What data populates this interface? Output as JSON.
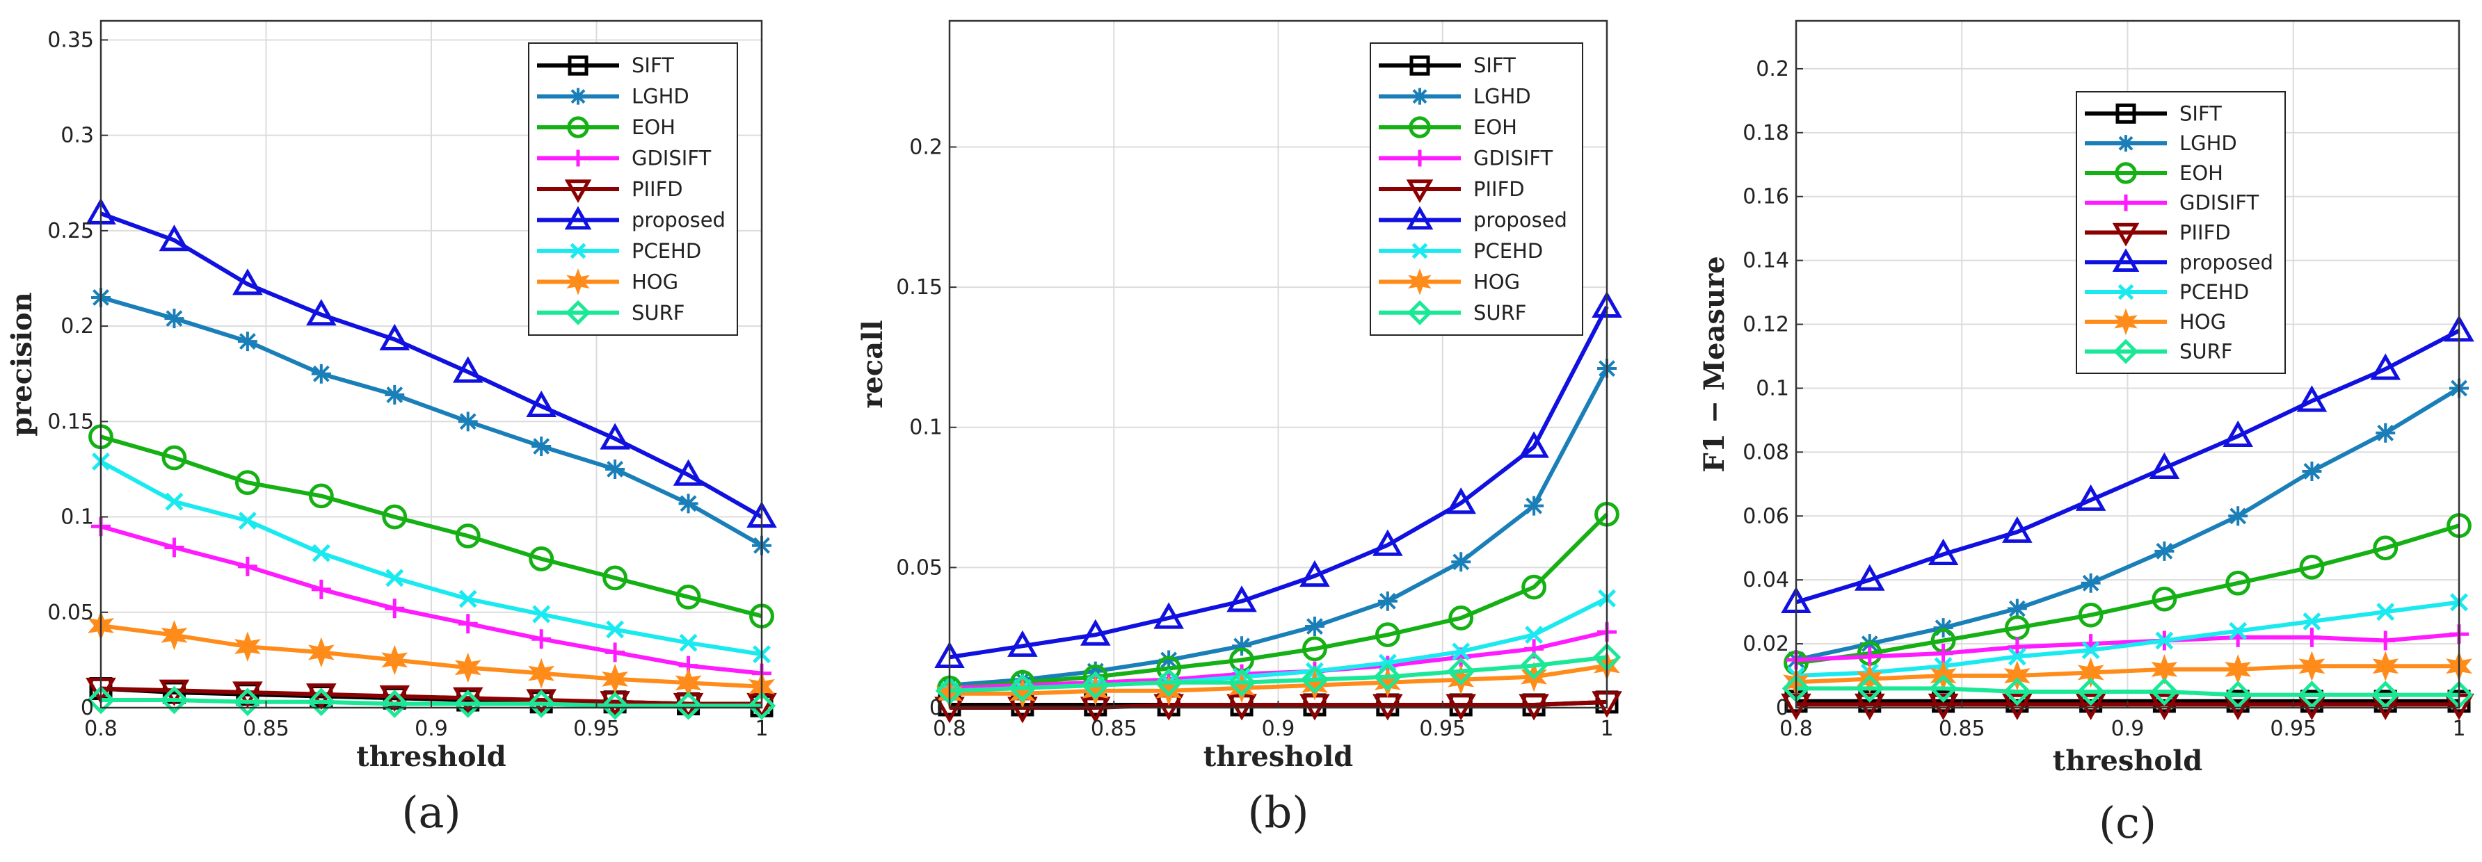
{
  "chart_data": [
    {
      "type": "line",
      "caption": "(a)",
      "title": "",
      "xlabel": "threshold",
      "ylabel": "precision",
      "xlim": [
        0.8,
        1
      ],
      "ylim": [
        0,
        0.36
      ],
      "xticks": [
        0.8,
        0.85,
        0.9,
        0.95,
        1
      ],
      "xtick_labels": [
        "0.8",
        "0.85",
        "0.9",
        "0.95",
        "1"
      ],
      "yticks": [
        0,
        0.05,
        0.1,
        0.15,
        0.2,
        0.25,
        0.3,
        0.35
      ],
      "ytick_labels": [
        "0",
        "0.05",
        "0.1",
        "0.15",
        "0.2",
        "0.25",
        "0.3",
        "0.35"
      ],
      "grid": true,
      "legend_position": "top-right",
      "x": [
        0.8,
        0.8222,
        0.8444,
        0.8667,
        0.8889,
        0.9111,
        0.9333,
        0.9556,
        0.9778,
        1.0
      ],
      "series": [
        {
          "name": "SIFT",
          "values": [
            0.01,
            0.008,
            0.007,
            0.006,
            0.005,
            0.004,
            0.003,
            0.003,
            0.002,
            0.001
          ]
        },
        {
          "name": "LGHD",
          "values": [
            0.215,
            0.204,
            0.192,
            0.175,
            0.164,
            0.15,
            0.137,
            0.125,
            0.107,
            0.085
          ]
        },
        {
          "name": "EOH",
          "values": [
            0.142,
            0.131,
            0.118,
            0.111,
            0.1,
            0.09,
            0.078,
            0.068,
            0.058,
            0.048
          ]
        },
        {
          "name": "GDISIFT",
          "values": [
            0.095,
            0.084,
            0.074,
            0.062,
            0.052,
            0.044,
            0.036,
            0.029,
            0.022,
            0.018
          ]
        },
        {
          "name": "PIIFD",
          "values": [
            0.01,
            0.009,
            0.008,
            0.007,
            0.006,
            0.005,
            0.004,
            0.003,
            0.002,
            0.002
          ]
        },
        {
          "name": "proposed",
          "values": [
            0.259,
            0.245,
            0.222,
            0.206,
            0.193,
            0.176,
            0.158,
            0.141,
            0.122,
            0.1
          ]
        },
        {
          "name": "PCEHD",
          "values": [
            0.129,
            0.108,
            0.098,
            0.081,
            0.068,
            0.057,
            0.049,
            0.041,
            0.034,
            0.028
          ]
        },
        {
          "name": "HOG",
          "values": [
            0.043,
            0.038,
            0.032,
            0.029,
            0.025,
            0.021,
            0.018,
            0.015,
            0.013,
            0.011
          ]
        },
        {
          "name": "SURF",
          "values": [
            0.004,
            0.004,
            0.003,
            0.003,
            0.002,
            0.002,
            0.002,
            0.001,
            0.001,
            0.001
          ]
        }
      ]
    },
    {
      "type": "line",
      "caption": "(b)",
      "title": "",
      "xlabel": "threshold",
      "ylabel": "recall",
      "xlim": [
        0.8,
        1
      ],
      "ylim": [
        0,
        0.245
      ],
      "xticks": [
        0.8,
        0.85,
        0.9,
        0.95,
        1
      ],
      "xtick_labels": [
        "0.8",
        "0.85",
        "0.9",
        "0.95",
        "1"
      ],
      "yticks": [
        0,
        0.05,
        0.1,
        0.15,
        0.2
      ],
      "ytick_labels": [
        "0",
        "0.05",
        "0.1",
        "0.15",
        "0.2"
      ],
      "grid": true,
      "legend_position": "top-right",
      "x": [
        0.8,
        0.8222,
        0.8444,
        0.8667,
        0.8889,
        0.9111,
        0.9333,
        0.9556,
        0.9778,
        1.0
      ],
      "series": [
        {
          "name": "SIFT",
          "values": [
            0.001,
            0.001,
            0.001,
            0.001,
            0.001,
            0.001,
            0.001,
            0.001,
            0.001,
            0.002
          ]
        },
        {
          "name": "LGHD",
          "values": [
            0.008,
            0.01,
            0.013,
            0.017,
            0.022,
            0.029,
            0.038,
            0.052,
            0.072,
            0.121
          ]
        },
        {
          "name": "EOH",
          "values": [
            0.007,
            0.009,
            0.011,
            0.014,
            0.017,
            0.021,
            0.026,
            0.032,
            0.043,
            0.069
          ]
        },
        {
          "name": "GDISIFT",
          "values": [
            0.007,
            0.008,
            0.009,
            0.01,
            0.012,
            0.013,
            0.015,
            0.018,
            0.021,
            0.027
          ]
        },
        {
          "name": "PIIFD",
          "values": [
            0.0,
            0.0,
            0.0,
            0.001,
            0.001,
            0.001,
            0.001,
            0.001,
            0.001,
            0.002
          ]
        },
        {
          "name": "proposed",
          "values": [
            0.018,
            0.022,
            0.026,
            0.032,
            0.038,
            0.047,
            0.058,
            0.073,
            0.093,
            0.143
          ]
        },
        {
          "name": "PCEHD",
          "values": [
            0.006,
            0.007,
            0.008,
            0.009,
            0.011,
            0.013,
            0.016,
            0.02,
            0.026,
            0.039
          ]
        },
        {
          "name": "HOG",
          "values": [
            0.005,
            0.005,
            0.006,
            0.006,
            0.007,
            0.008,
            0.009,
            0.01,
            0.011,
            0.015
          ]
        },
        {
          "name": "SURF",
          "values": [
            0.006,
            0.007,
            0.008,
            0.009,
            0.009,
            0.01,
            0.011,
            0.013,
            0.015,
            0.018
          ]
        }
      ]
    },
    {
      "type": "line",
      "caption": "(c)",
      "title": "",
      "xlabel": "threshold",
      "ylabel": "F1 − Measure",
      "xlim": [
        0.8,
        1
      ],
      "ylim": [
        0,
        0.215
      ],
      "xticks": [
        0.8,
        0.85,
        0.9,
        0.95,
        1
      ],
      "xtick_labels": [
        "0.8",
        "0.85",
        "0.9",
        "0.95",
        "1"
      ],
      "yticks": [
        0,
        0.02,
        0.04,
        0.06,
        0.08,
        0.1,
        0.12,
        0.14,
        0.16,
        0.18,
        0.2
      ],
      "ytick_labels": [
        "0",
        "0.02",
        "0.04",
        "0.06",
        "0.08",
        "0.1",
        "0.12",
        "0.14",
        "0.16",
        "0.18",
        "0.2"
      ],
      "grid": true,
      "legend_position": "top-center",
      "x": [
        0.8,
        0.8222,
        0.8444,
        0.8667,
        0.8889,
        0.9111,
        0.9333,
        0.9556,
        0.9778,
        1.0
      ],
      "series": [
        {
          "name": "SIFT",
          "values": [
            0.002,
            0.002,
            0.002,
            0.002,
            0.002,
            0.002,
            0.002,
            0.002,
            0.002,
            0.002
          ]
        },
        {
          "name": "LGHD",
          "values": [
            0.015,
            0.02,
            0.025,
            0.031,
            0.039,
            0.049,
            0.06,
            0.074,
            0.086,
            0.1
          ]
        },
        {
          "name": "EOH",
          "values": [
            0.014,
            0.017,
            0.021,
            0.025,
            0.029,
            0.034,
            0.039,
            0.044,
            0.05,
            0.057
          ]
        },
        {
          "name": "GDISIFT",
          "values": [
            0.015,
            0.016,
            0.017,
            0.019,
            0.02,
            0.021,
            0.022,
            0.022,
            0.021,
            0.023
          ]
        },
        {
          "name": "PIIFD",
          "values": [
            0.001,
            0.001,
            0.001,
            0.001,
            0.001,
            0.001,
            0.001,
            0.001,
            0.001,
            0.001
          ]
        },
        {
          "name": "proposed",
          "values": [
            0.033,
            0.04,
            0.048,
            0.055,
            0.065,
            0.075,
            0.085,
            0.096,
            0.106,
            0.118
          ]
        },
        {
          "name": "PCEHD",
          "values": [
            0.01,
            0.011,
            0.013,
            0.016,
            0.018,
            0.021,
            0.024,
            0.027,
            0.03,
            0.033
          ]
        },
        {
          "name": "HOG",
          "values": [
            0.008,
            0.009,
            0.01,
            0.01,
            0.011,
            0.012,
            0.012,
            0.013,
            0.013,
            0.013
          ]
        },
        {
          "name": "SURF",
          "values": [
            0.006,
            0.006,
            0.006,
            0.005,
            0.005,
            0.005,
            0.004,
            0.004,
            0.004,
            0.004
          ]
        }
      ]
    }
  ],
  "series_style": {
    "SIFT": {
      "color": "#000000",
      "marker": "square"
    },
    "LGHD": {
      "color": "#1a7fb8",
      "marker": "asterisk"
    },
    "EOH": {
      "color": "#14b014",
      "marker": "circle"
    },
    "GDISIFT": {
      "color": "#ff1aff",
      "marker": "plus"
    },
    "PIIFD": {
      "color": "#8b0000",
      "marker": "triangle-down"
    },
    "proposed": {
      "color": "#1010e0",
      "marker": "triangle-up"
    },
    "PCEHD": {
      "color": "#1aeaf0",
      "marker": "x"
    },
    "HOG": {
      "color": "#ff8c1a",
      "marker": "star"
    },
    "SURF": {
      "color": "#1ae896",
      "marker": "diamond"
    }
  }
}
